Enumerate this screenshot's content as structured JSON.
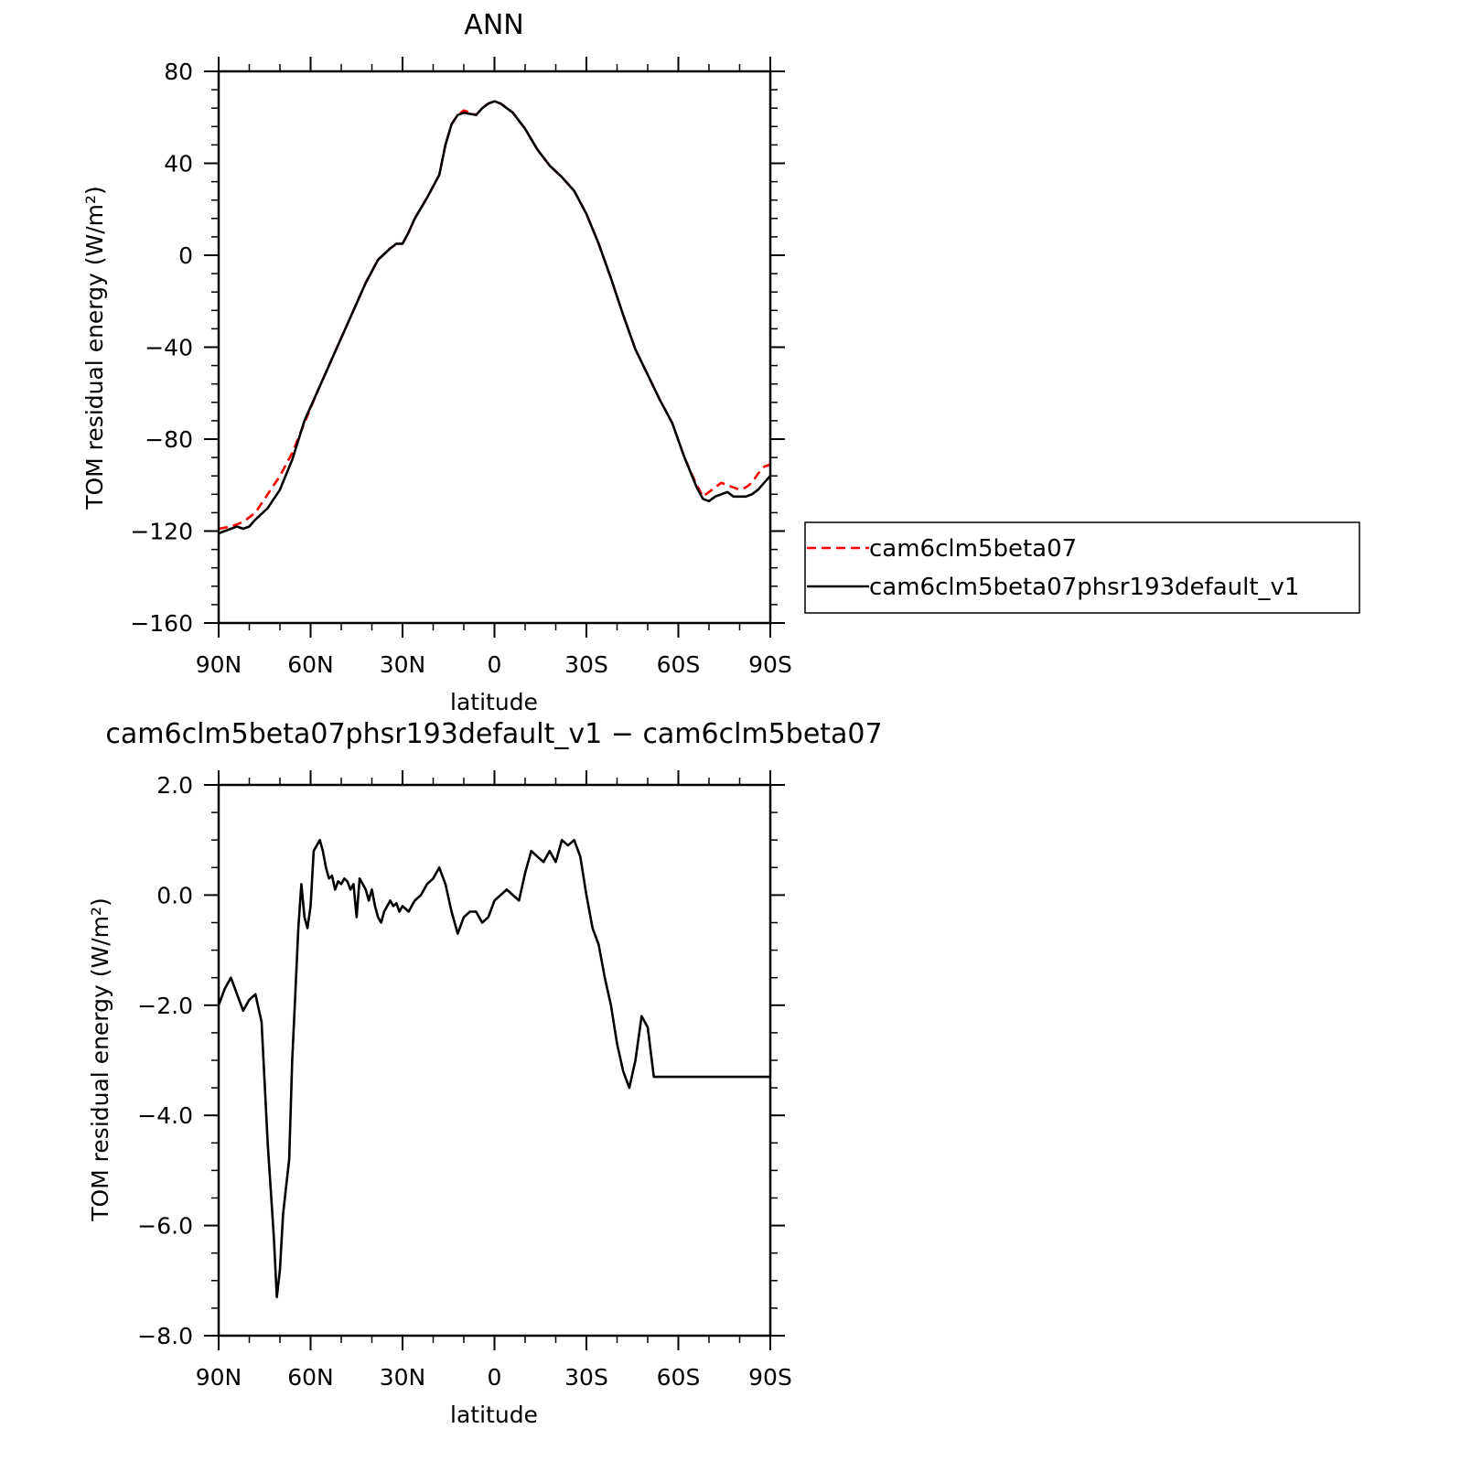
{
  "chart_data": [
    {
      "type": "line",
      "title": "ANN",
      "xlabel": "latitude",
      "ylabel": "TOM residual energy (W/m²)",
      "xlim": [
        90,
        -90
      ],
      "ylim": [
        -160,
        80
      ],
      "xticks": [
        90,
        60,
        30,
        0,
        -30,
        -60,
        -90
      ],
      "xtick_labels": [
        "90N",
        "60N",
        "30N",
        "0",
        "30S",
        "60S",
        "90S"
      ],
      "yticks": [
        80,
        40,
        0,
        -40,
        -80,
        -120,
        -160
      ],
      "ytick_labels": [
        "80",
        "40",
        "0",
        "−40",
        "−80",
        "−120",
        "−160"
      ],
      "x_axis_direction": "decreasing (north to south)",
      "grid": false,
      "legend_position": "right",
      "series": [
        {
          "name": "cam6clm5beta07",
          "color": "#ff0000",
          "dash": "dashed",
          "x": [
            90,
            86,
            82,
            78,
            74,
            70,
            66,
            62,
            58,
            54,
            50,
            46,
            42,
            38,
            34,
            32,
            30,
            28,
            26,
            22,
            18,
            16,
            14,
            12,
            10,
            6,
            4,
            2,
            0,
            -2,
            -6,
            -10,
            -14,
            -18,
            -22,
            -26,
            -30,
            -34,
            -38,
            -42,
            -46,
            -50,
            -54,
            -58,
            -62,
            -66,
            -68,
            -70,
            -72,
            -74,
            -76,
            -78,
            -80,
            -82,
            -84,
            -86,
            -88,
            -90
          ],
          "y": [
            -119,
            -118,
            -116,
            -112,
            -104,
            -96,
            -86,
            -73,
            -60,
            -48,
            -36,
            -24,
            -12,
            -2,
            3,
            5,
            5,
            10,
            16,
            25,
            35,
            48,
            57,
            61,
            63,
            61,
            64,
            66,
            67,
            66,
            62,
            55,
            46,
            39,
            34,
            28,
            18,
            5,
            -10,
            -26,
            -41,
            -52,
            -63,
            -73,
            -88,
            -100,
            -105,
            -103,
            -101,
            -99,
            -100,
            -101,
            -102,
            -101,
            -99,
            -95,
            -92,
            -91
          ]
        },
        {
          "name": "cam6clm5beta07phsr193default_v1",
          "color": "#000000",
          "dash": "solid",
          "x": [
            90,
            86,
            84,
            82,
            80,
            78,
            74,
            70,
            66,
            62,
            58,
            54,
            50,
            46,
            42,
            38,
            34,
            32,
            30,
            28,
            26,
            22,
            18,
            16,
            14,
            12,
            10,
            6,
            4,
            2,
            0,
            -2,
            -6,
            -10,
            -14,
            -18,
            -22,
            -26,
            -30,
            -34,
            -38,
            -42,
            -46,
            -50,
            -54,
            -58,
            -62,
            -66,
            -68,
            -70,
            -72,
            -74,
            -76,
            -78,
            -80,
            -82,
            -84,
            -86,
            -88,
            -90
          ],
          "y": [
            -121,
            -119,
            -118,
            -119,
            -118,
            -115,
            -110,
            -102,
            -89,
            -72,
            -60,
            -48,
            -36,
            -24,
            -12,
            -2,
            3,
            5,
            5,
            10,
            16,
            25,
            35,
            48,
            57,
            61,
            62,
            61,
            64,
            66,
            67,
            66,
            62,
            55,
            46,
            39,
            34,
            28,
            18,
            5,
            -10,
            -26,
            -41,
            -52,
            -63,
            -73,
            -88,
            -101,
            -106,
            -107,
            -105,
            -104,
            -103,
            -105,
            -105,
            -105,
            -104,
            -102,
            -99,
            -96
          ]
        }
      ]
    },
    {
      "type": "line",
      "title": "cam6clm5beta07phsr193default_v1 − cam6clm5beta07",
      "xlabel": "latitude",
      "ylabel": "TOM residual energy (W/m²)",
      "xlim": [
        90,
        -90
      ],
      "ylim": [
        -8.0,
        2.0
      ],
      "xticks": [
        90,
        60,
        30,
        0,
        -30,
        -60,
        -90
      ],
      "xtick_labels": [
        "90N",
        "60N",
        "30N",
        "0",
        "30S",
        "60S",
        "90S"
      ],
      "yticks": [
        2.0,
        0.0,
        -2.0,
        -4.0,
        -6.0,
        -8.0
      ],
      "ytick_labels": [
        "2.0",
        "0.0",
        "−2.0",
        "−4.0",
        "−6.0",
        "−8.0"
      ],
      "grid": false,
      "series": [
        {
          "name": "",
          "color": "#000000",
          "dash": "solid",
          "x": [
            90,
            88,
            86,
            84,
            82,
            80,
            78,
            76,
            74,
            72,
            71,
            70,
            69,
            68,
            67,
            66,
            65,
            64,
            63,
            62,
            61,
            60,
            59,
            58,
            57,
            56,
            55,
            54,
            53,
            52,
            51,
            50,
            49,
            48,
            47,
            46,
            45,
            44,
            43,
            42,
            41,
            40,
            39,
            38,
            37,
            36,
            35,
            34,
            33,
            32,
            31,
            30,
            29,
            28,
            27,
            26,
            24,
            22,
            20,
            18,
            16,
            14,
            12,
            10,
            8,
            6,
            4,
            2,
            0,
            -2,
            -4,
            -6,
            -8,
            -10,
            -12,
            -14,
            -16,
            -18,
            -20,
            -22,
            -24,
            -26,
            -28,
            -30,
            -32,
            -34,
            -36,
            -38,
            -40,
            -42,
            -44,
            -46,
            -48,
            -50,
            -52,
            -54,
            -56,
            -58,
            -60,
            -62,
            -64,
            -66,
            -68,
            -70,
            -72,
            -74,
            -76,
            -78,
            -80,
            -82,
            -84,
            -86,
            -88,
            -90
          ],
          "y": [
            -2.0,
            -1.7,
            -1.5,
            -1.8,
            -2.1,
            -1.9,
            -1.8,
            -2.3,
            -4.5,
            -6.2,
            -7.3,
            -6.8,
            -5.8,
            -5.3,
            -4.8,
            -3.0,
            -1.8,
            -0.6,
            0.2,
            -0.4,
            -0.6,
            -0.2,
            0.8,
            0.9,
            1.0,
            0.8,
            0.5,
            0.3,
            0.35,
            0.1,
            0.25,
            0.2,
            0.3,
            0.25,
            0.1,
            0.2,
            -0.4,
            0.3,
            0.2,
            0.1,
            -0.1,
            0.1,
            -0.2,
            -0.4,
            -0.5,
            -0.3,
            -0.2,
            -0.1,
            -0.2,
            -0.15,
            -0.3,
            -0.2,
            -0.25,
            -0.3,
            -0.2,
            -0.1,
            0.0,
            0.2,
            0.3,
            0.5,
            0.2,
            -0.3,
            -0.7,
            -0.4,
            -0.3,
            -0.3,
            -0.5,
            -0.4,
            -0.1,
            0.0,
            0.1,
            0.0,
            -0.1,
            0.4,
            0.8,
            0.7,
            0.6,
            0.8,
            0.6,
            1.0,
            0.9,
            1.0,
            0.7,
            0.0,
            -0.6,
            -0.9,
            -1.5,
            -2.0,
            -2.7,
            -3.2,
            -3.5,
            -3.0,
            -2.2,
            -2.4,
            -3.3,
            -3.3,
            -3.3,
            -3.3,
            -3.3,
            -3.3,
            -3.3,
            -3.3,
            -3.3,
            -3.3,
            -3.3,
            -3.3,
            -3.3,
            -3.3,
            -3.3,
            -3.3,
            -3.3,
            -3.3,
            -3.3,
            -3.3
          ]
        }
      ]
    }
  ],
  "legend": {
    "items": [
      {
        "label": "cam6clm5beta07",
        "color": "#ff0000",
        "dash": "dashed"
      },
      {
        "label": "cam6clm5beta07phsr193default_v1",
        "color": "#000000",
        "dash": "solid"
      }
    ]
  }
}
